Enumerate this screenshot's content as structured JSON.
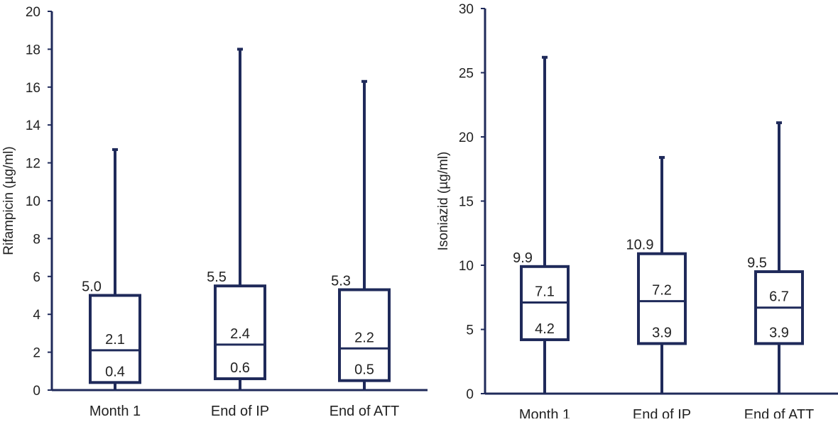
{
  "colors": {
    "box": "#1f2a5a",
    "text": "#222222",
    "background": "#ffffff"
  },
  "chart_data": [
    {
      "type": "box",
      "title": "",
      "xlabel": "",
      "ylabel": "Rifampicin (µg/ml)",
      "ylim": [
        0,
        20
      ],
      "yticks": [
        0,
        2,
        4,
        6,
        8,
        10,
        12,
        14,
        16,
        18,
        20
      ],
      "grid": false,
      "categories": [
        "Month 1",
        "End of IP",
        "End of ATT"
      ],
      "boxes": [
        {
          "category": "Month 1",
          "min": 0,
          "q1": 0.4,
          "median": 2.1,
          "q3": 5.0,
          "max": 12.7
        },
        {
          "category": "End of IP",
          "min": 0,
          "q1": 0.6,
          "median": 2.4,
          "q3": 5.5,
          "max": 18.0
        },
        {
          "category": "End of ATT",
          "min": 0,
          "q1": 0.5,
          "median": 2.2,
          "q3": 5.3,
          "max": 16.3
        }
      ]
    },
    {
      "type": "box",
      "title": "",
      "xlabel": "",
      "ylabel": "Isoniazid (µg/ml)",
      "ylim": [
        0,
        30
      ],
      "yticks": [
        0,
        5,
        10,
        15,
        20,
        25,
        30
      ],
      "grid": false,
      "categories": [
        "Month 1",
        "End of IP",
        "End of ATT"
      ],
      "boxes": [
        {
          "category": "Month 1",
          "min": 0,
          "q1": 4.2,
          "median": 7.1,
          "q3": 9.9,
          "max": 26.2
        },
        {
          "category": "End of IP",
          "min": 0,
          "q1": 3.9,
          "median": 7.2,
          "q3": 10.9,
          "max": 18.4
        },
        {
          "category": "End of ATT",
          "min": 0,
          "q1": 3.9,
          "median": 6.7,
          "q3": 9.5,
          "max": 21.1
        }
      ]
    }
  ]
}
